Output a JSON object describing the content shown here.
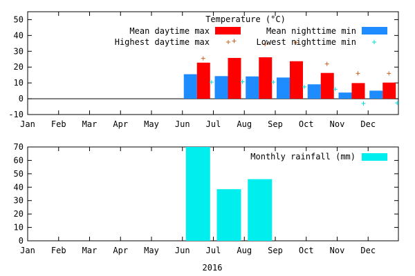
{
  "chart_data": [
    {
      "type": "bar",
      "title": "Temperature (°C)",
      "categories": [
        "Jan",
        "Feb",
        "Mar",
        "Apr",
        "May",
        "Jun",
        "Jul",
        "Aug",
        "Sep",
        "Oct",
        "Nov",
        "Dec"
      ],
      "ylim": [
        -10,
        55
      ],
      "yticks": [
        -10,
        0,
        10,
        20,
        30,
        40,
        50
      ],
      "legend_position": "top-right",
      "series": [
        {
          "name": "Mean daytime max",
          "kind": "bar",
          "color": "#ff0000",
          "values": [
            null,
            null,
            null,
            null,
            null,
            22.8,
            25.8,
            26.2,
            23.7,
            16.3,
            9.9,
            10.2
          ]
        },
        {
          "name": "Mean nighttime min",
          "kind": "bar",
          "color": "#1e8cff",
          "values": [
            null,
            null,
            null,
            null,
            null,
            15.5,
            14.3,
            14.1,
            13.4,
            9.1,
            3.9,
            5.1
          ]
        },
        {
          "name": "Highest daytime max",
          "kind": "marker",
          "marker": "+",
          "color": "#c8641e",
          "values": [
            null,
            null,
            null,
            null,
            null,
            25.5,
            36.5,
            34.5,
            35.5,
            22,
            16,
            16
          ]
        },
        {
          "name": "Lowest nighttime min",
          "kind": "marker",
          "marker": "+",
          "color": "#00dcdc",
          "values": [
            null,
            null,
            null,
            null,
            null,
            10.5,
            10.7,
            10.5,
            7.5,
            6,
            -3,
            -2.7
          ]
        }
      ]
    },
    {
      "type": "bar",
      "title": "",
      "xlabel": "2016",
      "categories": [
        "Jan",
        "Feb",
        "Mar",
        "Apr",
        "May",
        "Jun",
        "Jul",
        "Aug",
        "Sep",
        "Oct",
        "Nov",
        "Dec"
      ],
      "ylim": [
        0,
        70
      ],
      "yticks": [
        0,
        10,
        20,
        30,
        40,
        50,
        60,
        70
      ],
      "legend_position": "top-right",
      "series": [
        {
          "name": "Monthly rainfall (mm)",
          "color": "#00eeee",
          "values": [
            null,
            null,
            null,
            null,
            null,
            70,
            38.5,
            46,
            null,
            null,
            null,
            null
          ]
        }
      ]
    }
  ]
}
